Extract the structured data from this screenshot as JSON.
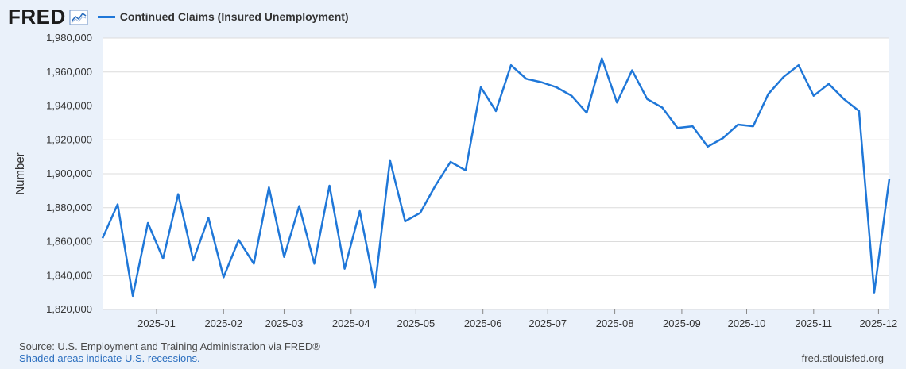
{
  "header": {
    "logo_text": "FRED",
    "legend_label": "Continued Claims (Insured Unemployment)",
    "series_color": "#1f77d8"
  },
  "footer": {
    "source": "Source: U.S. Employment and Training Administration via FRED®",
    "recession_note": "Shaded areas indicate U.S. recessions.",
    "site": "fred.stlouisfed.org"
  },
  "chart_data": {
    "type": "line",
    "title": "",
    "xlabel": "",
    "ylabel": "Number",
    "ylim": [
      1820000,
      1980000
    ],
    "yticks": [
      1820000,
      1840000,
      1860000,
      1880000,
      1900000,
      1920000,
      1940000,
      1960000,
      1980000
    ],
    "ytick_labels": [
      "1,820,000",
      "1,840,000",
      "1,860,000",
      "1,880,000",
      "1,900,000",
      "1,920,000",
      "1,940,000",
      "1,960,000",
      "1,980,000"
    ],
    "xlim": [
      "2024-12-07",
      "2025-12-06"
    ],
    "xticks": [
      "2025-01-01",
      "2025-02-01",
      "2025-03-01",
      "2025-04-01",
      "2025-05-01",
      "2025-06-01",
      "2025-07-01",
      "2025-08-01",
      "2025-09-01",
      "2025-10-01",
      "2025-11-01",
      "2025-12-01"
    ],
    "xtick_labels": [
      "2025-01",
      "2025-02",
      "2025-03",
      "2025-04",
      "2025-05",
      "2025-06",
      "2025-07",
      "2025-08",
      "2025-09",
      "2025-10",
      "2025-11",
      "2025-12"
    ],
    "grid": true,
    "legend": "top-left",
    "series": [
      {
        "name": "Continued Claims (Insured Unemployment)",
        "color": "#1f77d8",
        "x": [
          "2024-12-07",
          "2024-12-14",
          "2024-12-21",
          "2024-12-28",
          "2025-01-04",
          "2025-01-11",
          "2025-01-18",
          "2025-01-25",
          "2025-02-01",
          "2025-02-08",
          "2025-02-15",
          "2025-02-22",
          "2025-03-01",
          "2025-03-08",
          "2025-03-15",
          "2025-03-22",
          "2025-03-29",
          "2025-04-05",
          "2025-04-12",
          "2025-04-19",
          "2025-04-26",
          "2025-05-03",
          "2025-05-10",
          "2025-05-17",
          "2025-05-24",
          "2025-05-31",
          "2025-06-07",
          "2025-06-14",
          "2025-06-21",
          "2025-06-28",
          "2025-07-05",
          "2025-07-12",
          "2025-07-19",
          "2025-07-26",
          "2025-08-02",
          "2025-08-09",
          "2025-08-16",
          "2025-08-23",
          "2025-08-30",
          "2025-09-06",
          "2025-09-13",
          "2025-09-20",
          "2025-09-27",
          "2025-10-04",
          "2025-10-11",
          "2025-10-18",
          "2025-10-25",
          "2025-11-01",
          "2025-11-08",
          "2025-11-15",
          "2025-11-22",
          "2025-11-29",
          "2025-12-06"
        ],
        "values": [
          1862000,
          1882000,
          1828000,
          1871000,
          1850000,
          1888000,
          1849000,
          1874000,
          1839000,
          1861000,
          1847000,
          1892000,
          1851000,
          1881000,
          1847000,
          1893000,
          1844000,
          1878000,
          1833000,
          1908000,
          1872000,
          1877000,
          1893000,
          1907000,
          1902000,
          1951000,
          1937000,
          1964000,
          1956000,
          1954000,
          1951000,
          1946000,
          1936000,
          1968000,
          1942000,
          1961000,
          1944000,
          1939000,
          1927000,
          1928000,
          1916000,
          1921000,
          1929000,
          1928000,
          1947000,
          1957000,
          1964000,
          1946000,
          1953000,
          1944000,
          1937000,
          1830000,
          1897000
        ]
      }
    ]
  }
}
